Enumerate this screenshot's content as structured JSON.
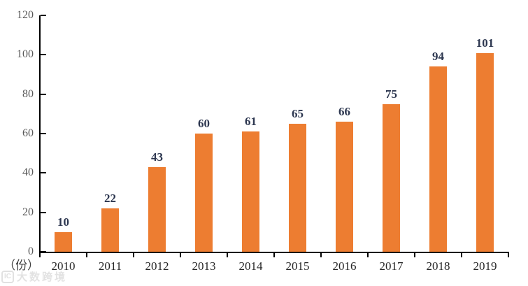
{
  "watermark": {
    "logo_text": "IC",
    "text": "大数跨境"
  },
  "chart_data": {
    "type": "bar",
    "title": "",
    "categories": [
      "2010",
      "2011",
      "2012",
      "2013",
      "2014",
      "2015",
      "2016",
      "2017",
      "2018",
      "2019"
    ],
    "values": [
      10,
      22,
      43,
      60,
      61,
      65,
      66,
      75,
      94,
      101
    ],
    "unit_label": "（份）",
    "xlabel": "",
    "ylabel": "",
    "ylim": [
      0,
      120
    ],
    "yticks": [
      0,
      20,
      40,
      60,
      80,
      100,
      120
    ],
    "grid": false,
    "legend": null,
    "data_labels_shown": true,
    "bar_color": "#ED7D31",
    "axis_color": "#000000",
    "value_label_color": "#2d3750",
    "ytick_label_color": "#595959",
    "category_label_color": "#262626"
  }
}
